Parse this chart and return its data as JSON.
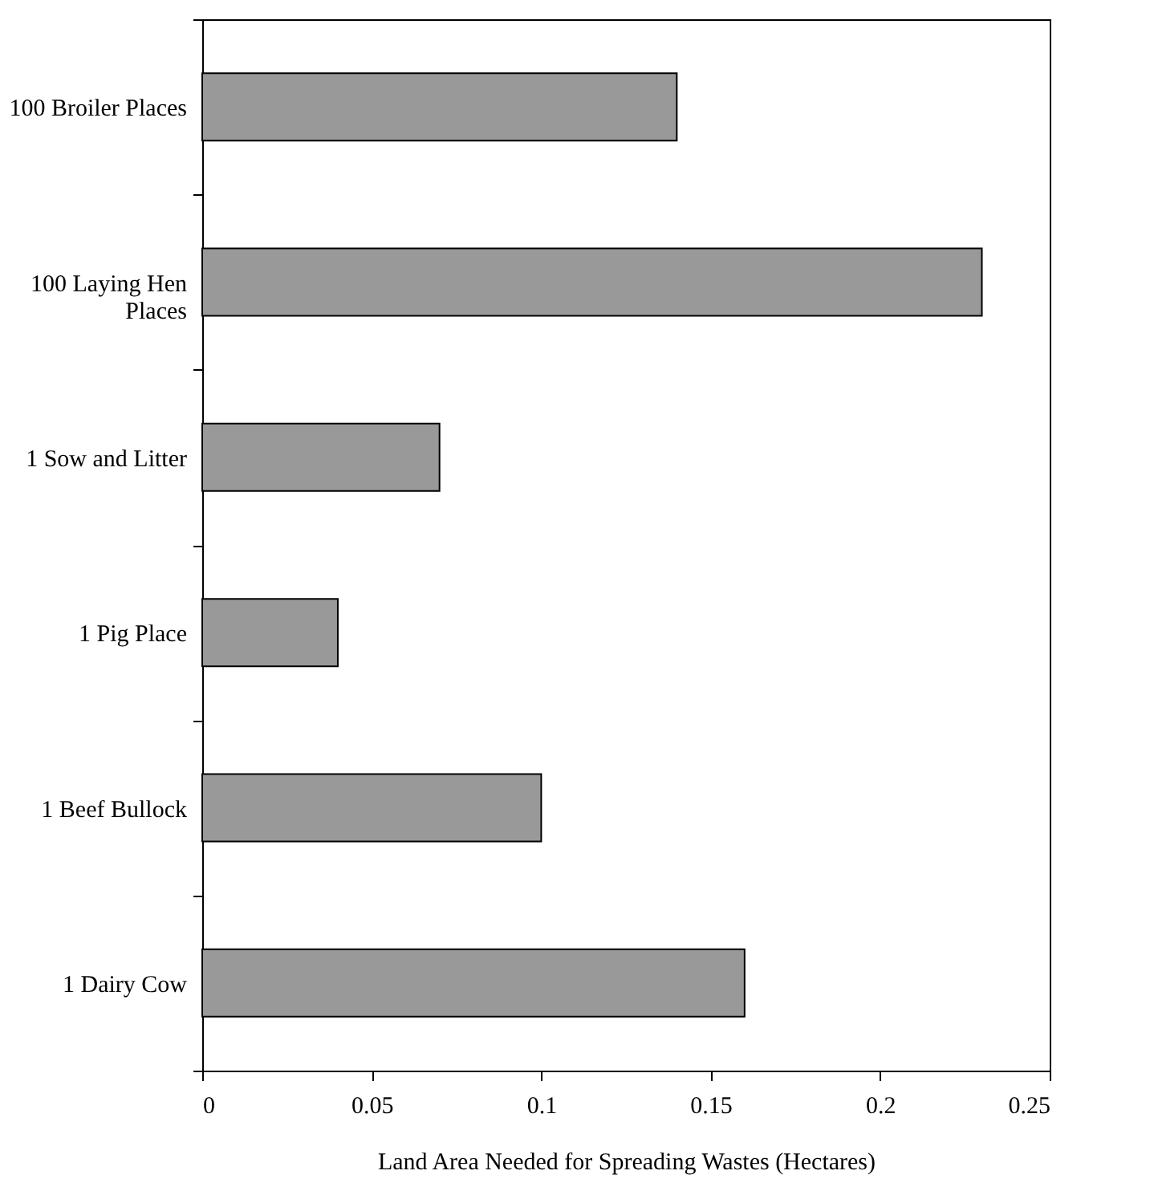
{
  "chart_data": {
    "type": "bar",
    "orientation": "horizontal",
    "xlabel": "Land Area Needed for Spreading Wastes (Hectares)",
    "categories": [
      "100 Broiler Places",
      "100 Laying Hen Places",
      "1 Sow and Litter",
      "1 Pig Place",
      "1 Beef Bullock",
      "1 Dairy Cow"
    ],
    "values": [
      0.14,
      0.23,
      0.07,
      0.04,
      0.1,
      0.16
    ],
    "color": "#999999",
    "xlim": [
      0,
      0.25
    ],
    "xticks": [
      0,
      0.05,
      0.1,
      0.15,
      0.2,
      0.25
    ],
    "grid": false
  }
}
